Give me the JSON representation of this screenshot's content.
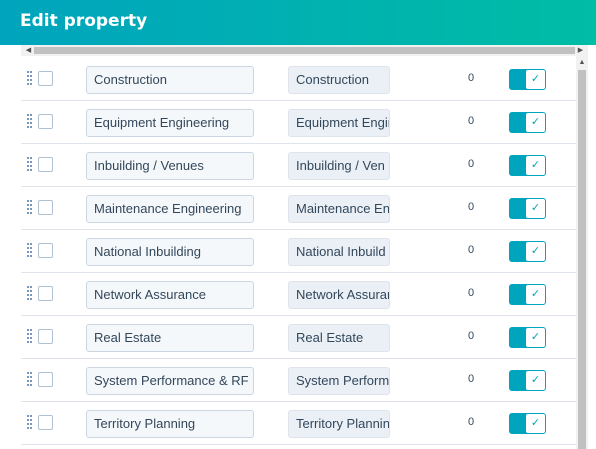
{
  "header": {
    "title": "Edit property"
  },
  "scrollbars": {
    "left_arrow": "◀",
    "right_arrow": "▶",
    "up_arrow": "▲"
  },
  "colors": {
    "header_start": "#00a4bd",
    "header_end": "#00bda5",
    "toggle_on": "#00a4bd"
  },
  "rows": [
    {
      "label": "Construction",
      "internal": "Construction",
      "count": "0",
      "visible": true
    },
    {
      "label": "Equipment Engineering",
      "internal": "Equipment Engir",
      "count": "0",
      "visible": true
    },
    {
      "label": "Inbuilding / Venues",
      "internal": "Inbuilding / Ven",
      "count": "0",
      "visible": true
    },
    {
      "label": "Maintenance Engineering",
      "internal": "Maintenance En",
      "count": "0",
      "visible": true
    },
    {
      "label": "National Inbuilding",
      "internal": "National Inbuild",
      "count": "0",
      "visible": true
    },
    {
      "label": "Network Assurance",
      "internal": "Network Assurar",
      "count": "0",
      "visible": true
    },
    {
      "label": "Real Estate",
      "internal": "Real Estate",
      "count": "0",
      "visible": true
    },
    {
      "label": "System Performance & RF",
      "internal": "System Perform",
      "count": "0",
      "visible": true
    },
    {
      "label": "Territory Planning",
      "internal": "Territory Plannin",
      "count": "0",
      "visible": true
    }
  ],
  "icons": {
    "drag_handle": "drag-handle-icon",
    "check": "✓"
  }
}
